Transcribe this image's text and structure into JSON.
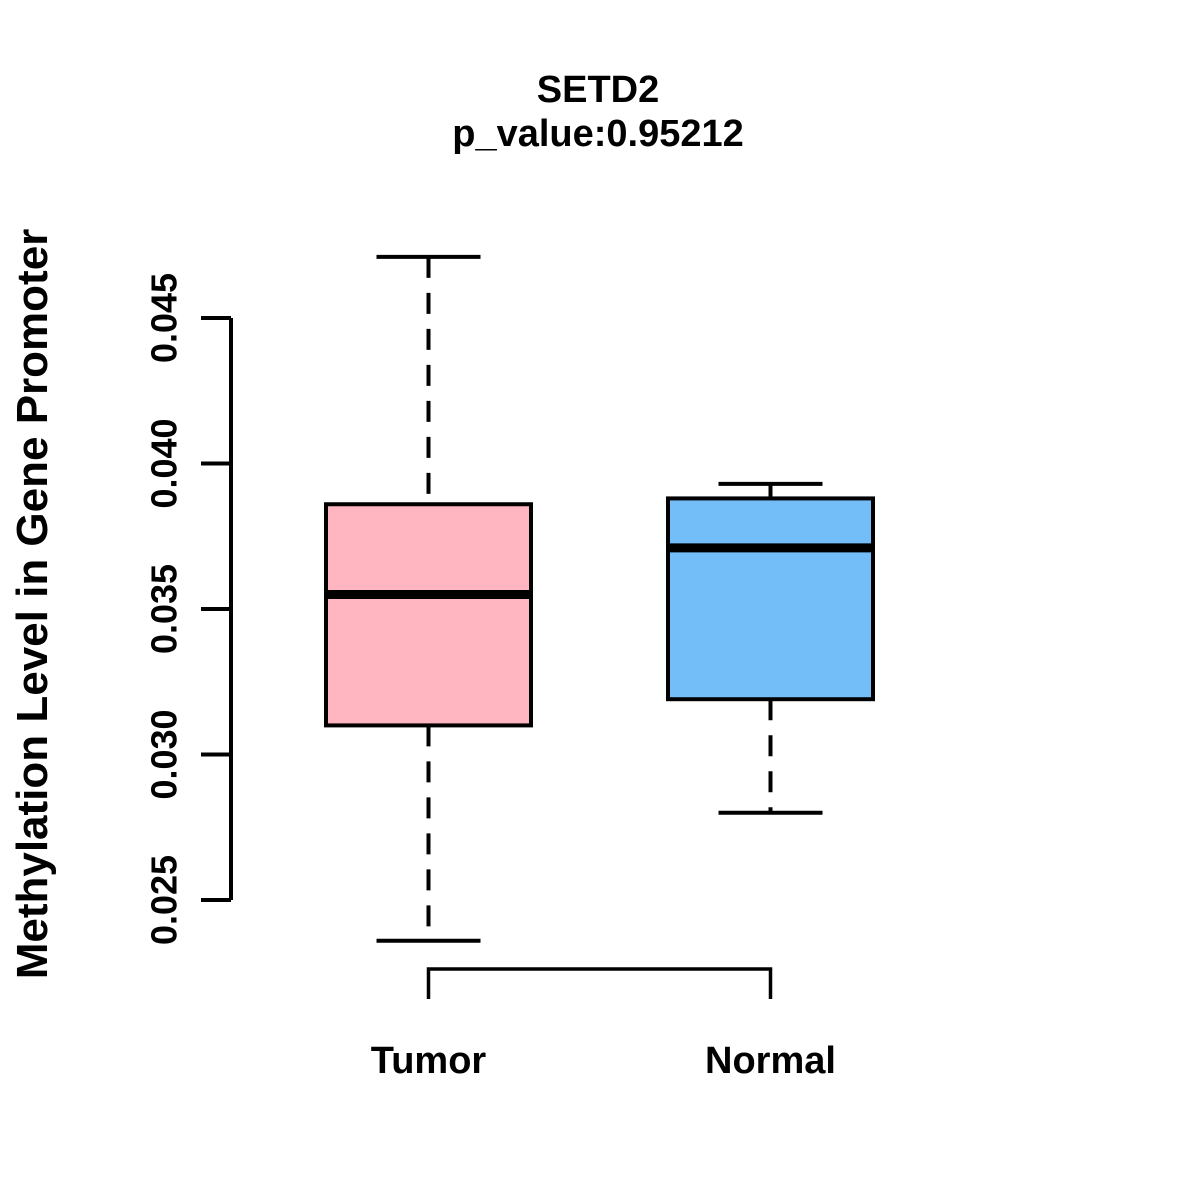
{
  "chart_data": {
    "type": "boxplot",
    "title": "SETD2",
    "subtitle": "p_value:0.95212",
    "p_value": 0.95212,
    "ylabel": "Methylation Level in Gene Promoter",
    "xlabel": "",
    "ylim": [
      0.025,
      0.045
    ],
    "yticks": [
      "0.025",
      "0.030",
      "0.035",
      "0.040",
      "0.045"
    ],
    "grid": "off",
    "legend": "none",
    "axis_color": "#000000",
    "groups": [
      {
        "label": "Tumor",
        "color": "#FFB6C1",
        "lower_whisker": 0.0236,
        "q1": 0.031,
        "median": 0.0355,
        "q3": 0.0386,
        "upper_whisker": 0.0471,
        "outliers": []
      },
      {
        "label": "Normal",
        "color": "#73BDF8",
        "lower_whisker": 0.028,
        "q1": 0.0319,
        "median": 0.0371,
        "q3": 0.0388,
        "upper_whisker": 0.0393,
        "outliers": []
      }
    ]
  }
}
